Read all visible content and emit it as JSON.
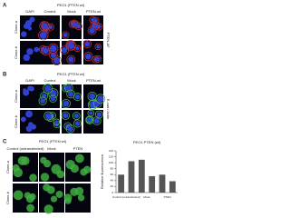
{
  "panels": [
    {
      "label": "A",
      "title": "PEO1 (PTEN wt)",
      "columns": [
        "DAPI",
        "Control",
        "Mock",
        "PTEN-wt"
      ],
      "rows": [
        "Clone-a",
        "Clone-b"
      ],
      "side_label": "PTEN-AF"
    },
    {
      "label": "B",
      "title": "PEO1 (PTEN wt)",
      "columns": [
        "DAPI",
        "Control",
        "Mock",
        "PTEN-wt"
      ],
      "rows": [
        "Clone-a",
        "Clone-b"
      ],
      "side_label": "E-cad / Actin"
    },
    {
      "label": "C",
      "title": "PEO1 (PTEN wt)",
      "columns": [
        "Control (untransfected)",
        "Mock",
        "PTEN"
      ],
      "rows": [
        "Clone-a",
        "Clone-b"
      ]
    }
  ],
  "chart_data": {
    "type": "bar",
    "title": "PEO1 PTEN (wt)",
    "ylabel": "Relative fluorescence",
    "categories": [
      "Control (untransfected)",
      null,
      "Mock",
      null,
      "PTEN",
      null
    ],
    "values": [
      60,
      105,
      110,
      55,
      60,
      38
    ],
    "color": "#555555",
    "ylim": [
      0,
      140
    ],
    "yticks": [
      0,
      20,
      40,
      60,
      80,
      100,
      120,
      140
    ]
  }
}
